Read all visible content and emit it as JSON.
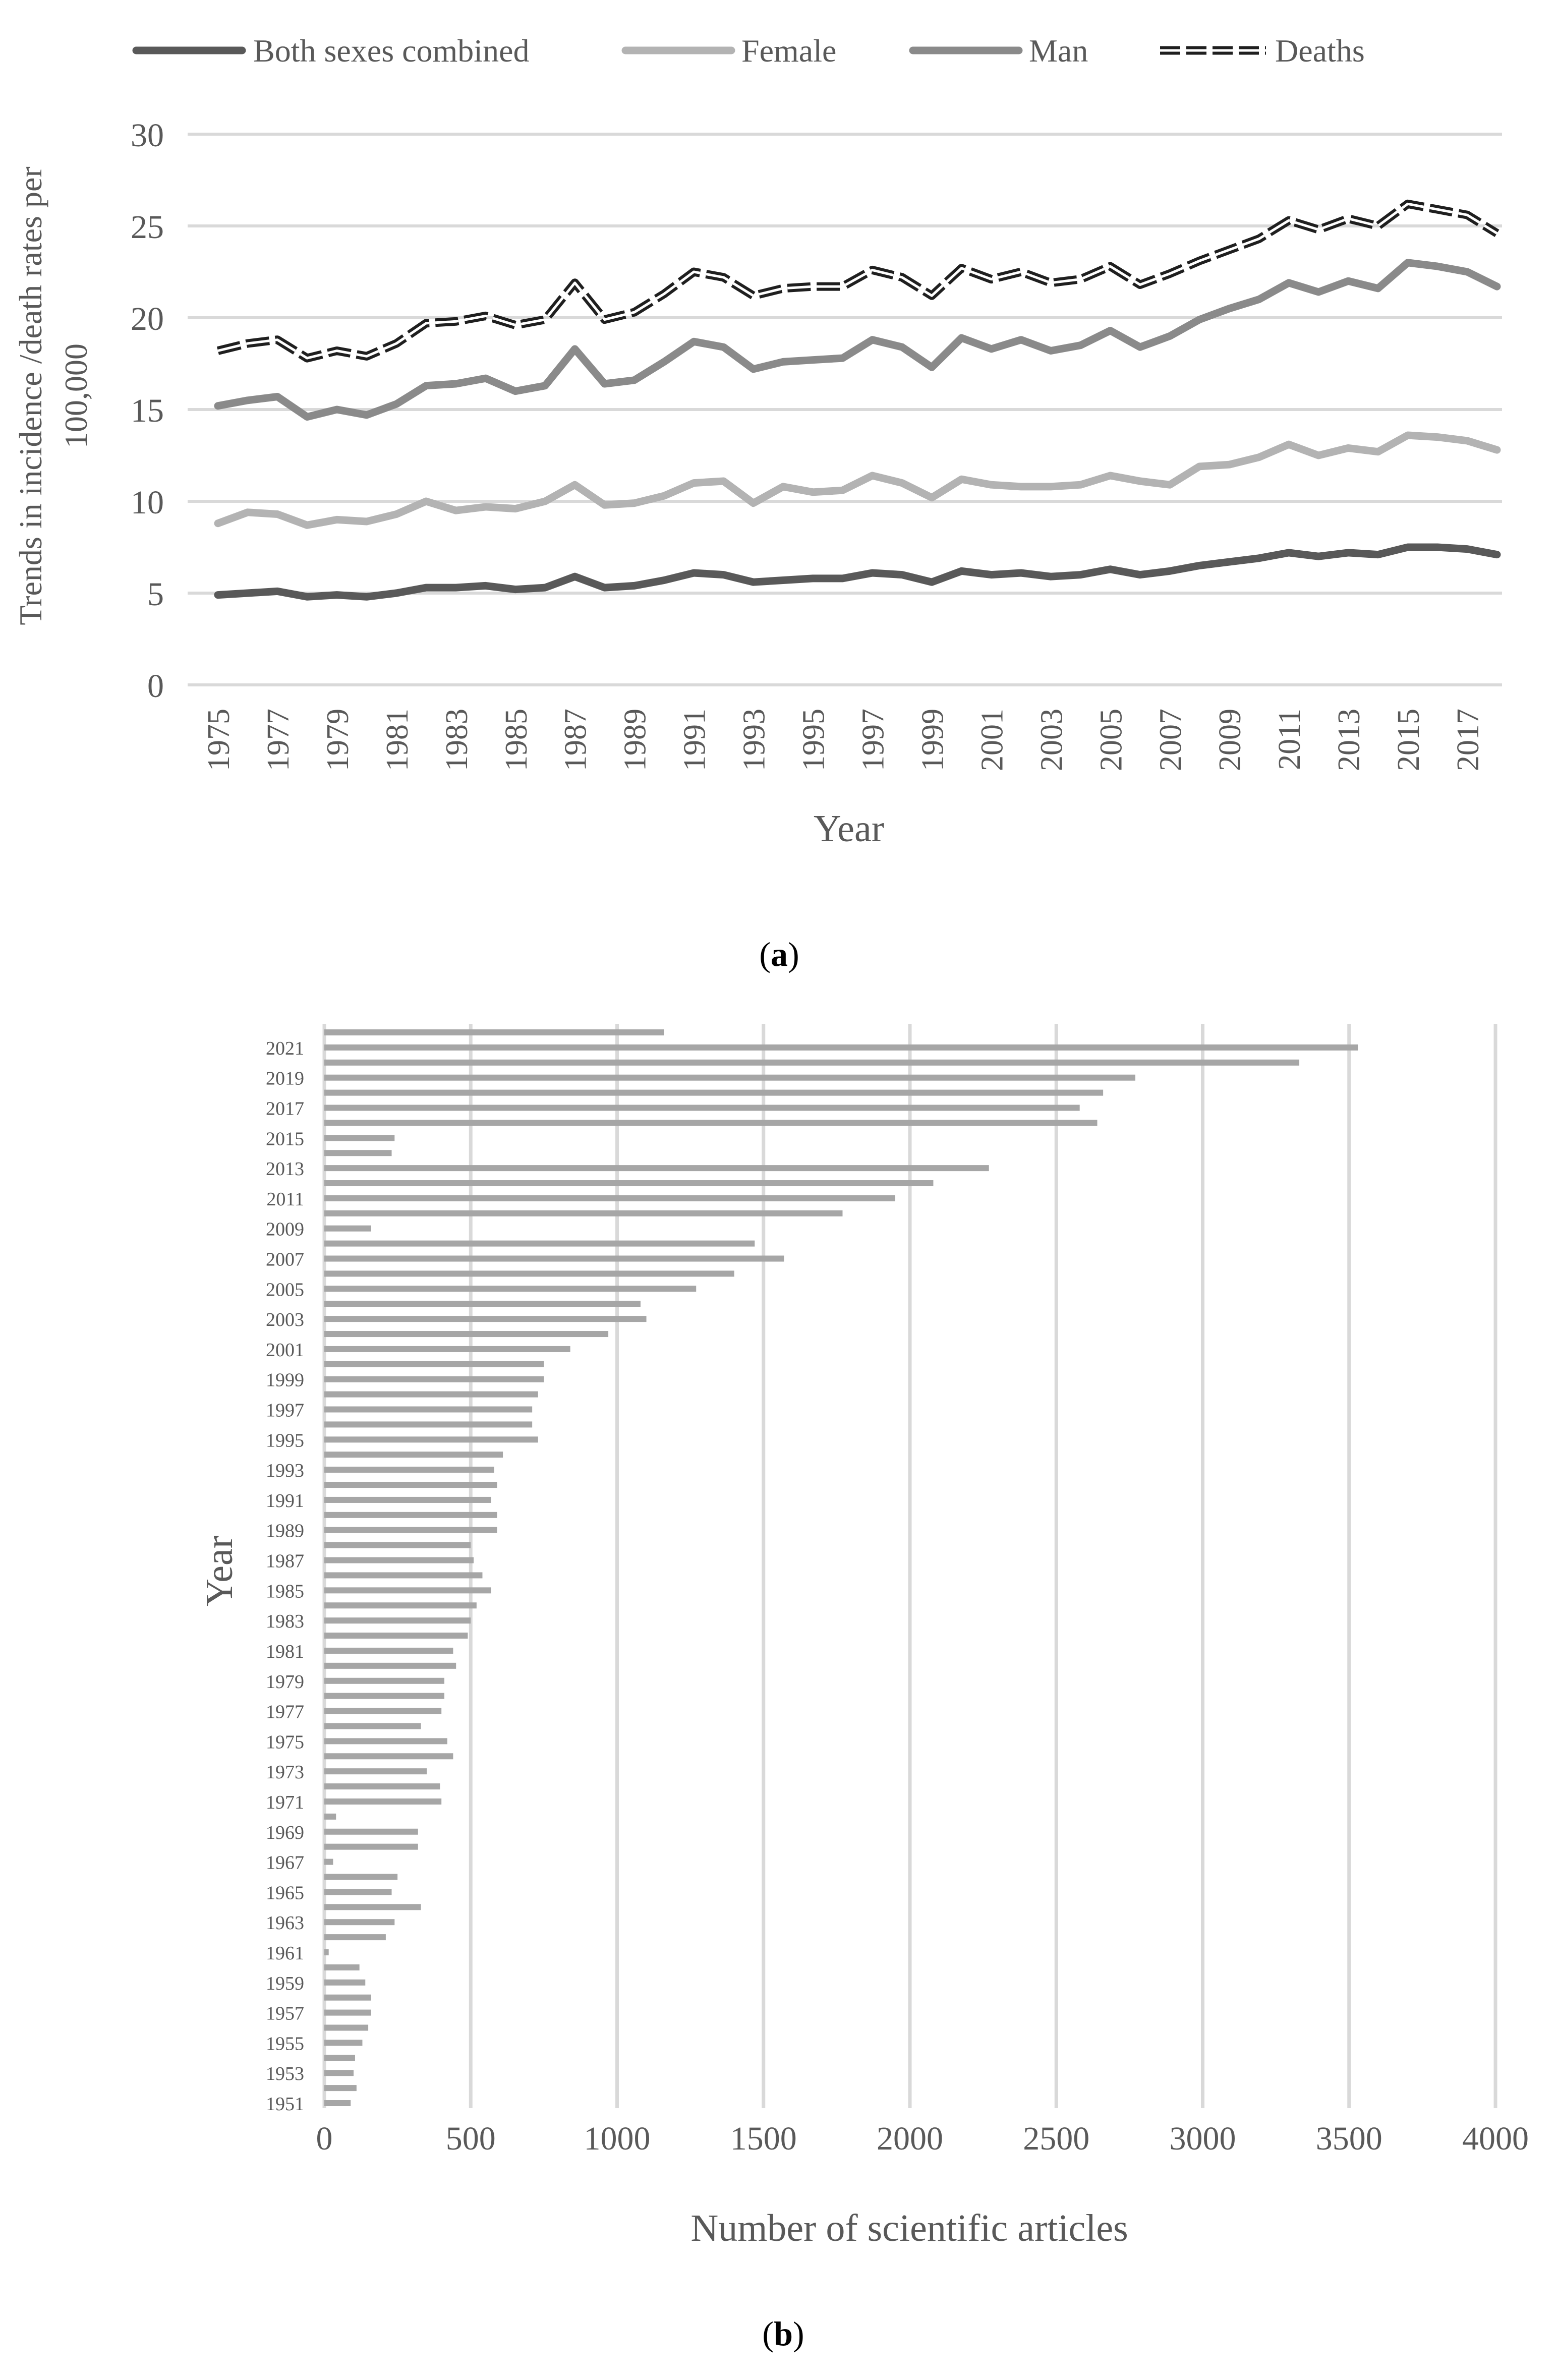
{
  "colors": {
    "both": "#595959",
    "female": "#b3b3b3",
    "man": "#8a8a8a",
    "deaths_outline": "#1f1f1f",
    "deaths_fill": "#ffffff",
    "bar": "#a6a6a6",
    "grid": "#d9d9d9",
    "text": "#595959"
  },
  "panel_a": {
    "caption": "a",
    "chart_data": {
      "type": "line",
      "xlabel": "Year",
      "ylabel_line1": "Trends in incidence /death rates per",
      "ylabel_line2": "100,000",
      "ylim": [
        0,
        30
      ],
      "yticks": [
        "0",
        "5",
        "10",
        "15",
        "20",
        "25",
        "30"
      ],
      "grid": "horizontal",
      "legend_position": "top",
      "x": [
        1975,
        1976,
        1977,
        1978,
        1979,
        1980,
        1981,
        1982,
        1983,
        1984,
        1985,
        1986,
        1987,
        1988,
        1989,
        1990,
        1991,
        1992,
        1993,
        1994,
        1995,
        1996,
        1997,
        1998,
        1999,
        2000,
        2001,
        2002,
        2003,
        2004,
        2005,
        2006,
        2007,
        2008,
        2009,
        2010,
        2011,
        2012,
        2013,
        2014,
        2015,
        2016,
        2017,
        2018
      ],
      "xtick_labels": [
        "1975",
        "1977",
        "1979",
        "1981",
        "1983",
        "1985",
        "1987",
        "1989",
        "1991",
        "1993",
        "1995",
        "1997",
        "1999",
        "2001",
        "2003",
        "2005",
        "2007",
        "2009",
        "2011",
        "2013",
        "2015",
        "2017"
      ],
      "series": [
        {
          "name": "Both sexes combined",
          "key": "both",
          "values": [
            4.9,
            5.0,
            5.1,
            4.8,
            4.9,
            4.8,
            5.0,
            5.3,
            5.3,
            5.4,
            5.2,
            5.3,
            5.9,
            5.3,
            5.4,
            5.7,
            6.1,
            6.0,
            5.6,
            5.7,
            5.8,
            5.8,
            6.1,
            6.0,
            5.6,
            6.2,
            6.0,
            6.1,
            5.9,
            6.0,
            6.3,
            6.0,
            6.2,
            6.5,
            6.7,
            6.9,
            7.2,
            7.0,
            7.2,
            7.1,
            7.5,
            7.5,
            7.4,
            7.1
          ]
        },
        {
          "name": "Female",
          "key": "female",
          "values": [
            8.8,
            9.4,
            9.3,
            8.7,
            9.0,
            8.9,
            9.3,
            10.0,
            9.5,
            9.7,
            9.6,
            10.0,
            10.9,
            9.8,
            9.9,
            10.3,
            11.0,
            11.1,
            9.9,
            10.8,
            10.5,
            10.6,
            11.4,
            11.0,
            10.2,
            11.2,
            10.9,
            10.8,
            10.8,
            10.9,
            11.4,
            11.1,
            10.9,
            11.9,
            12.0,
            12.4,
            13.1,
            12.5,
            12.9,
            12.7,
            13.6,
            13.5,
            13.3,
            12.8
          ]
        },
        {
          "name": "Man",
          "key": "man",
          "values": [
            15.2,
            15.5,
            15.7,
            14.6,
            15.0,
            14.7,
            15.3,
            16.3,
            16.4,
            16.7,
            16.0,
            16.3,
            18.3,
            16.4,
            16.6,
            17.6,
            18.7,
            18.4,
            17.2,
            17.6,
            17.7,
            17.8,
            18.8,
            18.4,
            17.3,
            18.9,
            18.3,
            18.8,
            18.2,
            18.5,
            19.3,
            18.4,
            19.0,
            19.9,
            20.5,
            21.0,
            21.9,
            21.4,
            22.0,
            21.6,
            23.0,
            22.8,
            22.5,
            21.7
          ]
        },
        {
          "name": "Deaths",
          "key": "deaths",
          "values": [
            18.2,
            18.6,
            18.8,
            17.8,
            18.2,
            17.9,
            18.6,
            19.7,
            19.8,
            20.1,
            19.6,
            19.9,
            21.9,
            19.9,
            20.3,
            21.3,
            22.5,
            22.2,
            21.2,
            21.6,
            21.7,
            21.7,
            22.6,
            22.2,
            21.2,
            22.7,
            22.1,
            22.5,
            21.9,
            22.1,
            22.8,
            21.8,
            22.4,
            23.1,
            23.7,
            24.3,
            25.3,
            24.8,
            25.4,
            25.0,
            26.2,
            25.9,
            25.6,
            24.6
          ]
        }
      ]
    }
  },
  "panel_b": {
    "caption": "b",
    "chart_data": {
      "type": "bar",
      "orientation": "horizontal",
      "xlabel": "Number of scientific articles",
      "ylabel": "Year",
      "xlim": [
        0,
        4000
      ],
      "xticks": [
        "0",
        "500",
        "1000",
        "1500",
        "2000",
        "2500",
        "3000",
        "3500",
        "4000"
      ],
      "grid": "vertical",
      "categories": [
        1951,
        1952,
        1953,
        1954,
        1955,
        1956,
        1957,
        1958,
        1959,
        1960,
        1961,
        1962,
        1963,
        1964,
        1965,
        1966,
        1967,
        1968,
        1969,
        1970,
        1971,
        1972,
        1973,
        1974,
        1975,
        1976,
        1977,
        1978,
        1979,
        1980,
        1981,
        1982,
        1983,
        1984,
        1985,
        1986,
        1987,
        1988,
        1989,
        1990,
        1991,
        1992,
        1993,
        1994,
        1995,
        1996,
        1997,
        1998,
        1999,
        2000,
        2001,
        2002,
        2003,
        2004,
        2005,
        2006,
        2007,
        2008,
        2009,
        2010,
        2011,
        2012,
        2013,
        2014,
        2015,
        2016,
        2017,
        2018,
        2019,
        2020,
        2021,
        2022
      ],
      "ytick_labels": [
        "1951",
        "1953",
        "1955",
        "1957",
        "1959",
        "1961",
        "1963",
        "1965",
        "1967",
        "1969",
        "1971",
        "1973",
        "1975",
        "1977",
        "1979",
        "1981",
        "1983",
        "1985",
        "1987",
        "1989",
        "1991",
        "1993",
        "1995",
        "1997",
        "1999",
        "2001",
        "2003",
        "2005",
        "2007",
        "2009",
        "2011",
        "2013",
        "2015",
        "2017",
        "2019",
        "2021"
      ],
      "values": [
        90,
        110,
        100,
        105,
        130,
        150,
        160,
        160,
        140,
        120,
        15,
        210,
        240,
        330,
        230,
        250,
        30,
        320,
        320,
        40,
        400,
        395,
        350,
        440,
        420,
        330,
        400,
        410,
        410,
        450,
        440,
        490,
        500,
        520,
        570,
        540,
        510,
        500,
        590,
        590,
        570,
        590,
        580,
        610,
        730,
        710,
        710,
        730,
        750,
        750,
        840,
        970,
        1100,
        1080,
        1270,
        1400,
        1570,
        1470,
        160,
        1770,
        1950,
        2080,
        2270,
        230,
        240,
        2640,
        2580,
        2660,
        2770,
        3330,
        3530,
        1160
      ]
    }
  }
}
